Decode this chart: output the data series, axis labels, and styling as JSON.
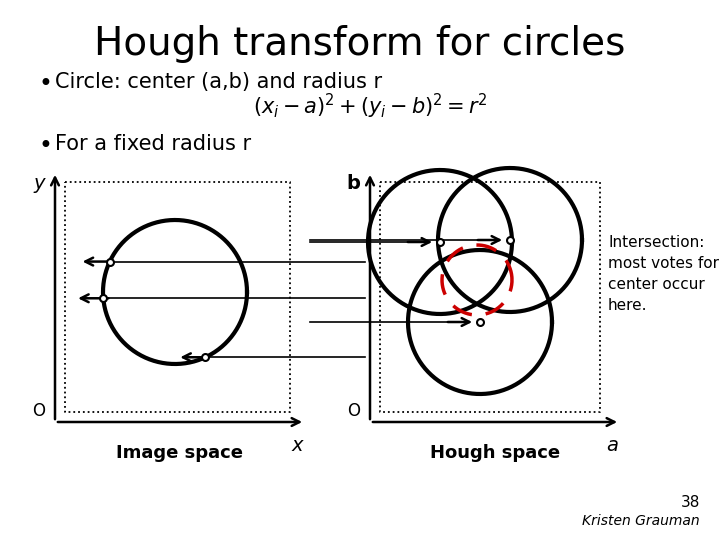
{
  "title": "Hough transform for circles",
  "bullet1": "Circle: center (a,b) and radius r",
  "formula": "$(x_i - a)^2 + (y_i - b)^2 = r^2$",
  "bullet2": "For a fixed radius r",
  "image_space_label": "Image space",
  "hough_space_label": "Hough space",
  "intersection_text": "Intersection:\nmost votes for\ncenter occur\nhere.",
  "footnote_num": "38",
  "footnote_author": "Kristen Grauman",
  "bg_color": "#ffffff",
  "text_color": "#000000",
  "circle_color": "#000000",
  "dashed_circle_color": "#cc0000",
  "title_fontsize": 28,
  "bullet_fontsize": 15,
  "formula_fontsize": 15,
  "label_fontsize": 13,
  "annot_fontsize": 11,
  "footnote_fontsize": 11
}
